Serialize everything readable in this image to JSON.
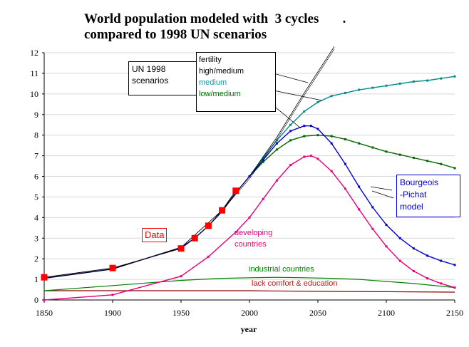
{
  "title_line1": "World population modeled with  3 cycles",
  "title_dot": ".",
  "title_line2": "compared to 1998 UN scenarios",
  "chart_data": {
    "type": "line",
    "xlabel": "year",
    "ylabel": "",
    "xlim": [
      1850,
      2150
    ],
    "ylim": [
      0,
      12
    ],
    "xticks": [
      1850,
      1900,
      1950,
      2000,
      2050,
      2100,
      2150
    ],
    "yticks": [
      0,
      1,
      2,
      3,
      4,
      5,
      6,
      7,
      8,
      9,
      10,
      11,
      12
    ],
    "grid": "horizontal",
    "series": [
      {
        "key": "data",
        "name": "Data",
        "color": "#ff0000",
        "x": [
          1850,
          1900,
          1950,
          1960,
          1970,
          1980,
          1990
        ],
        "y": [
          1.1,
          1.55,
          2.5,
          3.0,
          3.6,
          4.35,
          5.3
        ]
      },
      {
        "key": "bp",
        "name": "Bourgeois -Pichat model",
        "color": "#0000cc",
        "x": [
          1850,
          1900,
          1950,
          1960,
          1970,
          1980,
          1990,
          2000,
          2010,
          2020,
          2030,
          2040,
          2045,
          2050,
          2060,
          2070,
          2080,
          2090,
          2100,
          2110,
          2120,
          2130,
          2140,
          2150
        ],
        "y": [
          1.05,
          1.5,
          2.55,
          3.0,
          3.6,
          4.3,
          5.2,
          6.0,
          6.8,
          7.6,
          8.2,
          8.45,
          8.45,
          8.3,
          7.6,
          6.6,
          5.5,
          4.5,
          3.65,
          3.0,
          2.5,
          2.15,
          1.9,
          1.7
        ]
      },
      {
        "key": "unhigh",
        "name": "high/medium",
        "color": "#000000",
        "x": [
          1850,
          1900,
          1950,
          1980,
          2000,
          2020,
          2040,
          2062
        ],
        "y": [
          1.05,
          1.5,
          2.55,
          4.35,
          6.0,
          7.9,
          10.05,
          12.3
        ]
      },
      {
        "key": "unmed",
        "name": "medium",
        "color": "#008b8b",
        "x": [
          2000,
          2010,
          2020,
          2030,
          2040,
          2050,
          2060,
          2070,
          2080,
          2090,
          2100,
          2110,
          2120,
          2130,
          2140,
          2150
        ],
        "y": [
          6.0,
          6.9,
          7.75,
          8.5,
          9.15,
          9.6,
          9.9,
          10.05,
          10.2,
          10.3,
          10.4,
          10.5,
          10.6,
          10.65,
          10.75,
          10.85
        ]
      },
      {
        "key": "unlow",
        "name": "low/medium",
        "color": "#006600",
        "x": [
          2000,
          2010,
          2020,
          2030,
          2040,
          2050,
          2060,
          2070,
          2080,
          2090,
          2100,
          2110,
          2120,
          2130,
          2140,
          2150
        ],
        "y": [
          6.0,
          6.7,
          7.3,
          7.75,
          7.95,
          8.0,
          7.95,
          7.8,
          7.6,
          7.4,
          7.2,
          7.05,
          6.9,
          6.75,
          6.6,
          6.4
        ]
      },
      {
        "key": "dev",
        "name": "developing countries",
        "color": "#e6007e",
        "x": [
          1850,
          1900,
          1950,
          1970,
          1990,
          2000,
          2010,
          2020,
          2030,
          2040,
          2045,
          2050,
          2060,
          2070,
          2080,
          2090,
          2100,
          2110,
          2120,
          2130,
          2140,
          2150
        ],
        "y": [
          0.0,
          0.25,
          1.15,
          2.1,
          3.3,
          4.0,
          4.9,
          5.8,
          6.55,
          6.95,
          7.0,
          6.85,
          6.25,
          5.4,
          4.4,
          3.45,
          2.6,
          1.9,
          1.4,
          1.05,
          0.8,
          0.6
        ]
      },
      {
        "key": "ind",
        "name": "industrial countries",
        "color": "#008000",
        "x": [
          1850,
          1900,
          1950,
          1980,
          2000,
          2020,
          2040,
          2060,
          2080,
          2100,
          2120,
          2150
        ],
        "y": [
          0.45,
          0.7,
          0.95,
          1.05,
          1.08,
          1.1,
          1.08,
          1.05,
          1.0,
          0.9,
          0.8,
          0.6
        ]
      },
      {
        "key": "lack",
        "name": "lack comfort & education",
        "color": "#8b0000",
        "x": [
          1850,
          1900,
          1950,
          2000,
          2050,
          2100,
          2150
        ],
        "y": [
          0.45,
          0.45,
          0.45,
          0.45,
          0.42,
          0.4,
          0.38
        ]
      }
    ],
    "annotations": {
      "un1998": [
        "UN 1998",
        "scenarios"
      ],
      "fertility": "fertility",
      "high": "high/medium",
      "medium": "medium",
      "low": "low/medium",
      "data": "Data",
      "developing": [
        "developing",
        "countries"
      ],
      "industrial": "industrial countries",
      "lack": "lack comfort & education",
      "bp": [
        "Bourgeois",
        "-Pichat",
        "model"
      ]
    },
    "colors": {
      "data": "#ff0000",
      "bp": "#0000cc",
      "medium": "#008b8b",
      "low": "#006600",
      "dev": "#e6007e",
      "ind": "#008000",
      "lack": "#8b0000"
    }
  }
}
